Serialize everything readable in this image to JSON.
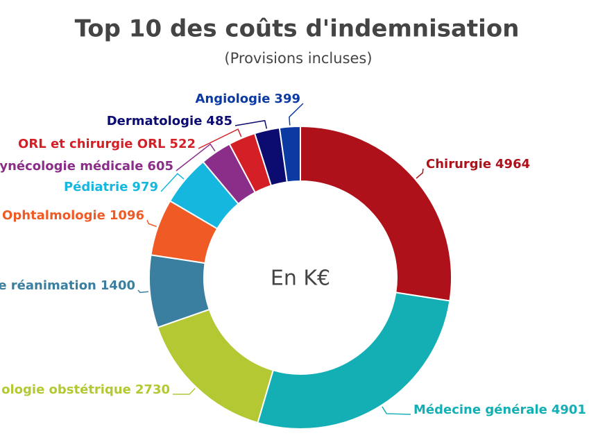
{
  "chart_data": {
    "type": "donut",
    "title": "Top 10 des coûts d'indemnisation",
    "subtitle": "(Provisions incluses)",
    "center_label": "En K€",
    "categories": [
      "Chirurgie",
      "Médecine générale",
      "ologie obstétrique",
      "e réanimation",
      "Ophtalmologie",
      "Pédiatrie",
      "ynécologie médicale",
      "ORL et chirurgie ORL",
      "Dermatologie",
      "Angiologie"
    ],
    "values": [
      4964,
      4901,
      2730,
      1400,
      1096,
      979,
      605,
      522,
      485,
      399
    ],
    "colors": [
      "#ae1119",
      "#13afb4",
      "#b4c834",
      "#3a7f9f",
      "#ef5a25",
      "#16b7df",
      "#8a2e8a",
      "#d51f27",
      "#0b0b70",
      "#0b3aa2"
    ]
  }
}
